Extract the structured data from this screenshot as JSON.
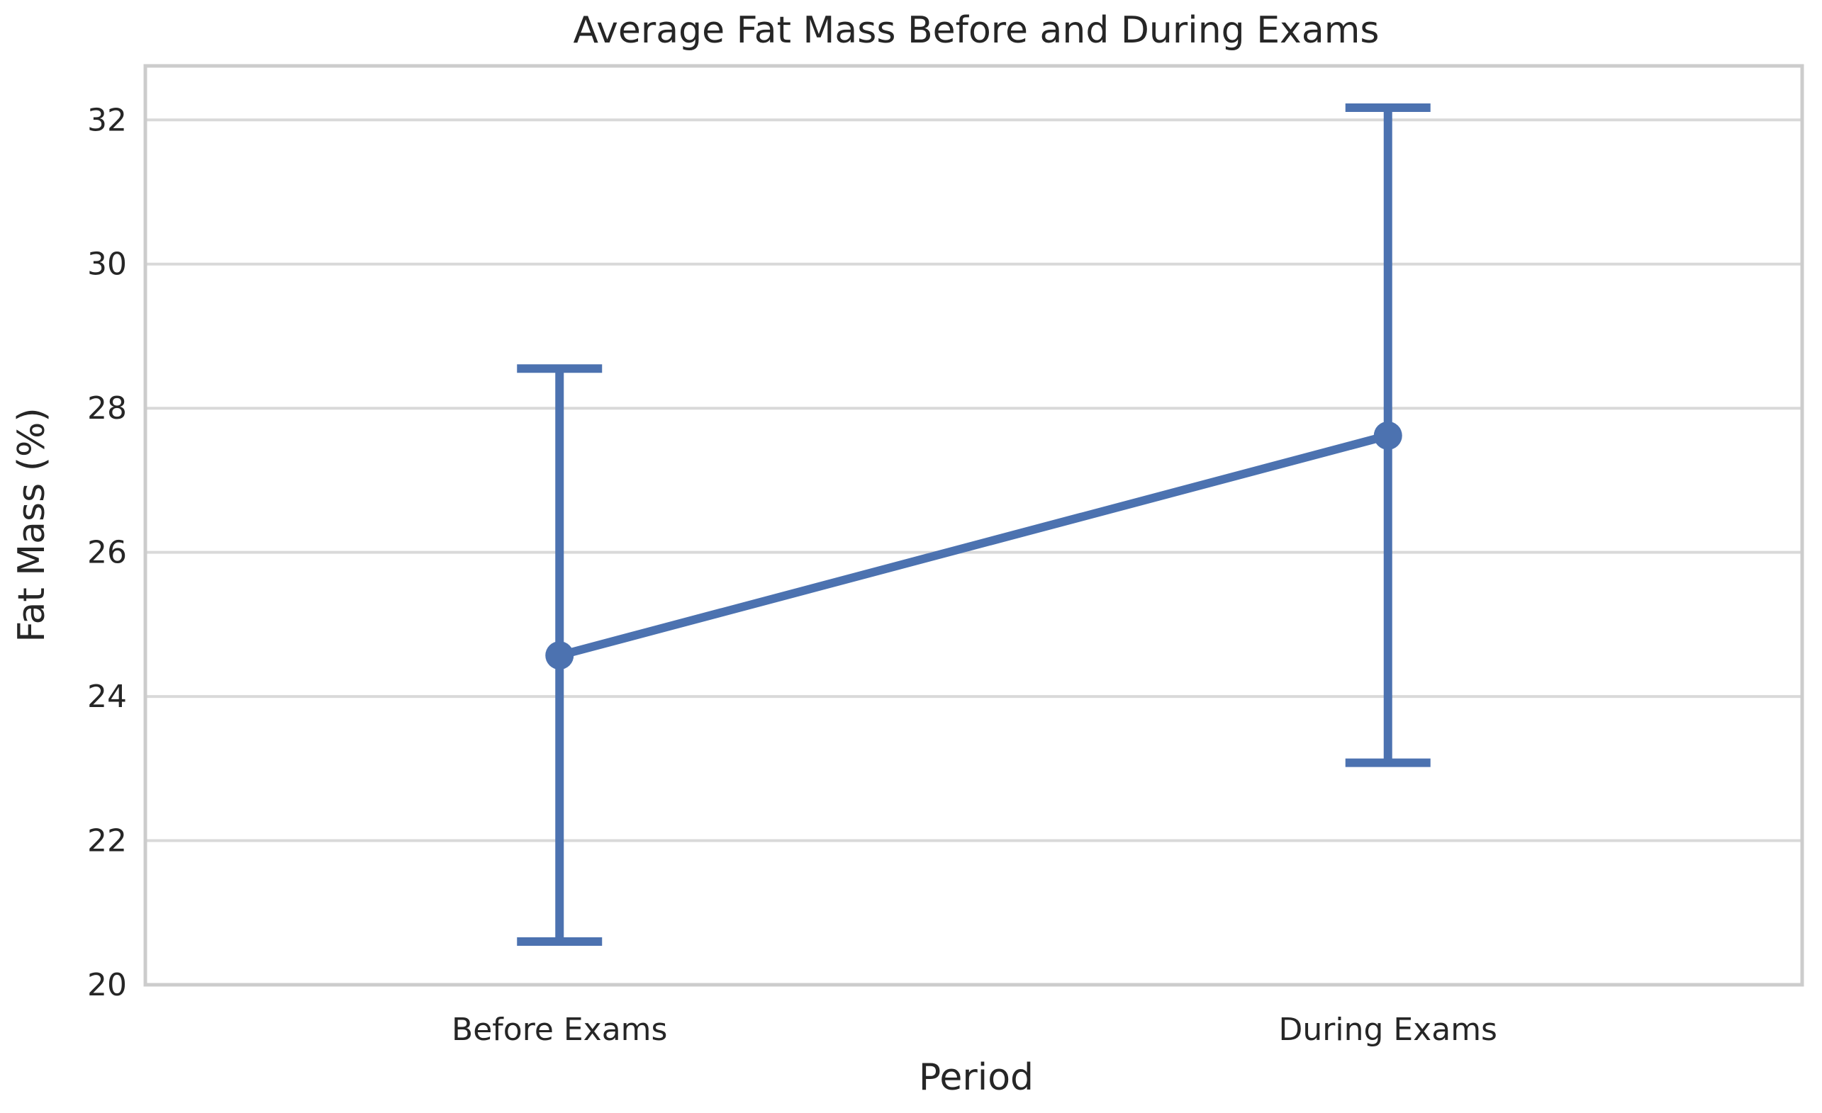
{
  "chart_data": {
    "type": "line",
    "title": "Average Fat Mass Before and During Exams",
    "xlabel": "Period",
    "ylabel": "Fat Mass (%)",
    "categories": [
      "Before Exams",
      "During Exams"
    ],
    "series": [
      {
        "name": "Fat Mass",
        "values": [
          24.57,
          27.62
        ],
        "error_low": [
          20.6,
          23.08
        ],
        "error_high": [
          28.55,
          32.17
        ]
      }
    ],
    "ylim": [
      20,
      32.75
    ],
    "yticks": [
      20,
      22,
      24,
      26,
      28,
      30,
      32
    ],
    "grid": true,
    "color": "#4c72b0"
  }
}
